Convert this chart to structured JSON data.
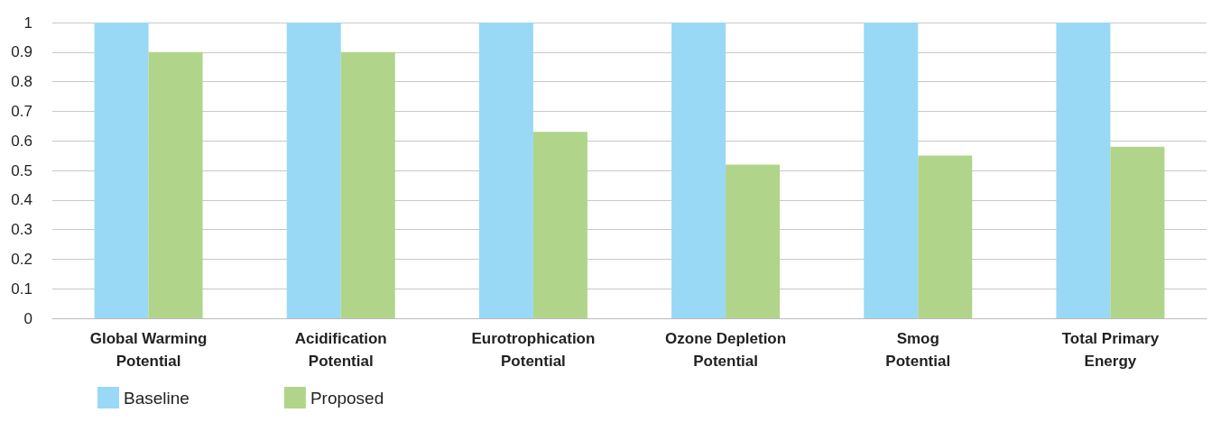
{
  "chart_data": {
    "type": "bar",
    "categories": [
      "Global Warming Potential",
      "Acidification Potential",
      "Eurotrophication Potential",
      "Ozone Depletion Potential",
      "Smog Potential",
      "Total Primary Energy"
    ],
    "series": [
      {
        "name": "Baseline",
        "color": "#99d9f5",
        "values": [
          1,
          1,
          1,
          1,
          1,
          1
        ]
      },
      {
        "name": "Proposed",
        "color": "#b0d58a",
        "values": [
          0.9,
          0.9,
          0.63,
          0.52,
          0.55,
          0.58
        ]
      }
    ],
    "ylim": [
      0,
      1
    ],
    "yticks": [
      0,
      0.1,
      0.2,
      0.3,
      0.4,
      0.5,
      0.6,
      0.7,
      0.8,
      0.9,
      1
    ],
    "grid": "y",
    "legend": "bottom left"
  }
}
